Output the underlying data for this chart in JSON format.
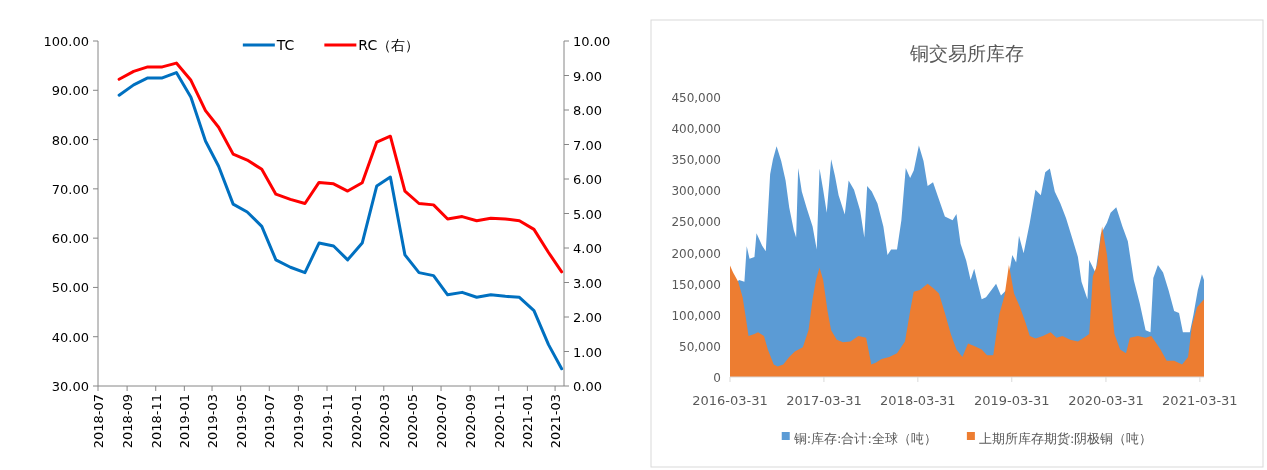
{
  "chart_data": [
    {
      "type": "line",
      "legend": "top",
      "xlim": [
        "2018-07-01",
        "2021-03-20"
      ],
      "xticks": [
        "2018-07",
        "2018-09",
        "2018-11",
        "2019-01",
        "2019-03",
        "2019-05",
        "2019-07",
        "2019-09",
        "2019-11",
        "2020-01",
        "2020-03",
        "2020-05",
        "2020-07",
        "2020-09",
        "2020-11",
        "2021-01",
        "2021-03"
      ],
      "ylim": [
        30,
        100
      ],
      "yticks": [
        {
          "value": 30,
          "label": "30.00"
        },
        {
          "value": 40,
          "label": "40.00"
        },
        {
          "value": 50,
          "label": "50.00"
        },
        {
          "value": 60,
          "label": "60.00"
        },
        {
          "value": 70,
          "label": "70.00"
        },
        {
          "value": 80,
          "label": "80.00"
        },
        {
          "value": 90,
          "label": "90.00"
        },
        {
          "value": 100,
          "label": "100.00"
        }
      ],
      "y2lim": [
        0,
        10
      ],
      "y2ticks": [
        {
          "value": 0,
          "label": "0.00"
        },
        {
          "value": 1,
          "label": "1.00"
        },
        {
          "value": 2,
          "label": "2.00"
        },
        {
          "value": 3,
          "label": "3.00"
        },
        {
          "value": 4,
          "label": "4.00"
        },
        {
          "value": 5,
          "label": "5.00"
        },
        {
          "value": 6,
          "label": "6.00"
        },
        {
          "value": 7,
          "label": "7.00"
        },
        {
          "value": 8,
          "label": "8.00"
        },
        {
          "value": 9,
          "label": "9.00"
        },
        {
          "value": 10,
          "label": "10.00"
        }
      ],
      "x": [
        "2018-08-15",
        "2018-09-15",
        "2018-10-15",
        "2018-11-15",
        "2018-12-15",
        "2019-01-15",
        "2019-02-15",
        "2019-03-15",
        "2019-04-15",
        "2019-05-15",
        "2019-06-15",
        "2019-07-15",
        "2019-08-15",
        "2019-09-15",
        "2019-10-15",
        "2019-11-15",
        "2019-12-15",
        "2020-01-15",
        "2020-02-15",
        "2020-03-15",
        "2020-04-15",
        "2020-05-15",
        "2020-06-15",
        "2020-07-15",
        "2020-08-15",
        "2020-09-15",
        "2020-10-15",
        "2020-11-15",
        "2020-12-15",
        "2021-01-15",
        "2021-02-15",
        "2021-03-15"
      ],
      "series": [
        {
          "name": "TC",
          "color": "#0070c0",
          "values": [
            89.0,
            91.1,
            92.5,
            92.5,
            93.6,
            88.6,
            79.7,
            74.6,
            66.9,
            65.3,
            62.4,
            55.6,
            54.1,
            53.0,
            59.0,
            58.4,
            55.6,
            59.0,
            70.6,
            72.4,
            56.6,
            53.0,
            52.4,
            48.5,
            49.0,
            48.0,
            48.5,
            48.2,
            48.0,
            45.3,
            38.4,
            33.5
          ]
        },
        {
          "name": "RC（右）",
          "color": "#ff0000",
          "axis": "y2",
          "values": [
            8.89,
            9.12,
            9.25,
            9.25,
            9.36,
            8.86,
            7.98,
            7.5,
            6.72,
            6.55,
            6.28,
            5.56,
            5.41,
            5.29,
            5.9,
            5.86,
            5.65,
            5.89,
            7.07,
            7.24,
            5.65,
            5.29,
            5.25,
            4.84,
            4.91,
            4.79,
            4.86,
            4.84,
            4.79,
            4.54,
            3.87,
            3.31
          ]
        }
      ]
    },
    {
      "type": "area",
      "title": "铜交易所库存",
      "legend": "bottom",
      "xlim": [
        "2016-03-31",
        "2021-04-16"
      ],
      "xticks": [
        "2016-03-31",
        "2017-03-31",
        "2018-03-31",
        "2019-03-31",
        "2020-03-31",
        "2021-03-31"
      ],
      "ylim": [
        0,
        450000
      ],
      "yticks": [
        0,
        {
          "value": 50000,
          "label": "50,000"
        },
        {
          "value": 100000,
          "label": "100,000"
        },
        {
          "value": 150000,
          "label": "150,000"
        },
        {
          "value": 200000,
          "label": "200,000"
        },
        {
          "value": 250000,
          "label": "250,000"
        },
        {
          "value": 300000,
          "label": "300,000"
        },
        {
          "value": 350000,
          "label": "350,000"
        },
        {
          "value": 400000,
          "label": "400,000"
        },
        {
          "value": 450000,
          "label": "450,000"
        }
      ],
      "series": [
        {
          "name": "铜:库存:合计:全球（吨）",
          "color": "#5b9bd5",
          "x": [
            "2016-03-31",
            "2016-05-05",
            "2016-05-26",
            "2016-06-04",
            "2016-06-15",
            "2016-07-04",
            "2016-07-12",
            "2016-08-03",
            "2016-08-17",
            "2016-09-03",
            "2016-09-14",
            "2016-09-28",
            "2016-10-16",
            "2016-11-02",
            "2016-11-16",
            "2016-12-04",
            "2016-12-13",
            "2016-12-21",
            "2017-01-04",
            "2017-01-22",
            "2017-02-15",
            "2017-03-03",
            "2017-03-14",
            "2017-03-28",
            "2017-04-11",
            "2017-04-28",
            "2017-05-13",
            "2017-05-27",
            "2017-06-20",
            "2017-07-05",
            "2017-07-26",
            "2017-08-19",
            "2017-09-04",
            "2017-09-15",
            "2017-10-03",
            "2017-10-25",
            "2017-11-17",
            "2017-12-03",
            "2017-12-17",
            "2018-01-09",
            "2018-01-26",
            "2018-02-12",
            "2018-03-01",
            "2018-03-15",
            "2018-04-04",
            "2018-04-22",
            "2018-05-08",
            "2018-05-29",
            "2018-06-18",
            "2018-07-14",
            "2018-08-13",
            "2018-08-28",
            "2018-09-13",
            "2018-10-05",
            "2018-10-22",
            "2018-11-05",
            "2018-11-19",
            "2018-12-04",
            "2018-12-21",
            "2019-01-11",
            "2019-01-29",
            "2019-02-17",
            "2019-03-10",
            "2019-04-02",
            "2019-04-17",
            "2019-04-28",
            "2019-05-16",
            "2019-06-09",
            "2019-07-01",
            "2019-07-22",
            "2019-08-08",
            "2019-08-26",
            "2019-09-14",
            "2019-10-06",
            "2019-10-28",
            "2019-11-20",
            "2019-12-13",
            "2019-12-27",
            "2020-01-19",
            "2020-01-26",
            "2020-02-19",
            "2020-03-11",
            "2020-04-04",
            "2020-04-18",
            "2020-05-10",
            "2020-06-03",
            "2020-06-24",
            "2020-07-17",
            "2020-08-09",
            "2020-09-01",
            "2020-09-20",
            "2020-10-01",
            "2020-10-19",
            "2020-11-08",
            "2020-11-29",
            "2020-12-21",
            "2021-01-09",
            "2021-01-24",
            "2021-02-20",
            "2021-03-06",
            "2021-03-23",
            "2021-04-08",
            "2021-04-16"
          ],
          "values": [
            140000,
            156000,
            153000,
            210000,
            190000,
            193000,
            231000,
            211000,
            202000,
            326000,
            350000,
            371000,
            347000,
            316000,
            273000,
            236000,
            224000,
            336000,
            298000,
            273000,
            242000,
            205000,
            335000,
            301000,
            264000,
            350000,
            323000,
            292000,
            261000,
            316000,
            301000,
            267000,
            224000,
            307000,
            298000,
            279000,
            242000,
            196000,
            205000,
            205000,
            252000,
            336000,
            320000,
            332000,
            372000,
            347000,
            307000,
            313000,
            289000,
            258000,
            252000,
            262000,
            214000,
            187000,
            156000,
            174000,
            150000,
            125000,
            128000,
            140000,
            150000,
            131000,
            140000,
            196000,
            184000,
            227000,
            199000,
            248000,
            301000,
            292000,
            329000,
            335000,
            298000,
            279000,
            255000,
            224000,
            193000,
            153000,
            125000,
            188000,
            168000,
            230000,
            248000,
            264000,
            273000,
            242000,
            218000,
            156000,
            119000,
            75000,
            72000,
            159000,
            180000,
            168000,
            140000,
            106000,
            103000,
            72000,
            72000,
            100000,
            140000,
            165000,
            156000
          ]
        },
        {
          "name": "上期所库存期货:阴极铜（吨）",
          "color": "#ed7d31",
          "x": [
            "2016-03-31",
            "2016-04-12",
            "2016-05-02",
            "2016-05-19",
            "2016-06-01",
            "2016-06-11",
            "2016-07-04",
            "2016-07-18",
            "2016-08-10",
            "2016-08-25",
            "2016-09-17",
            "2016-10-02",
            "2016-10-24",
            "2016-11-16",
            "2016-12-08",
            "2017-01-08",
            "2017-01-30",
            "2017-02-15",
            "2017-02-28",
            "2017-03-14",
            "2017-03-28",
            "2017-04-14",
            "2017-04-28",
            "2017-05-20",
            "2017-06-13",
            "2017-07-12",
            "2017-08-12",
            "2017-09-11",
            "2017-10-01",
            "2017-10-18",
            "2017-11-10",
            "2017-12-10",
            "2018-01-09",
            "2018-02-09",
            "2018-03-01",
            "2018-03-15",
            "2018-04-08",
            "2018-05-08",
            "2018-05-29",
            "2018-06-21",
            "2018-07-14",
            "2018-08-06",
            "2018-08-28",
            "2018-09-20",
            "2018-10-12",
            "2018-11-05",
            "2018-12-04",
            "2018-12-25",
            "2019-01-18",
            "2019-02-10",
            "2019-03-03",
            "2019-03-20",
            "2019-04-09",
            "2019-05-02",
            "2019-05-23",
            "2019-06-09",
            "2019-07-01",
            "2019-07-30",
            "2019-08-29",
            "2019-09-21",
            "2019-10-14",
            "2019-11-13",
            "2019-12-13",
            "2020-01-05",
            "2020-01-26",
            "2020-02-09",
            "2020-02-26",
            "2020-03-16",
            "2020-04-04",
            "2020-04-18",
            "2020-05-03",
            "2020-05-25",
            "2020-06-17",
            "2020-07-02",
            "2020-08-02",
            "2020-09-01",
            "2020-09-23",
            "2020-10-08",
            "2020-10-29",
            "2020-11-22",
            "2020-12-21",
            "2021-01-21",
            "2021-02-13",
            "2021-02-28",
            "2021-03-20",
            "2021-04-16"
          ],
          "values": [
            179000,
            168000,
            153000,
            128000,
            94000,
            66000,
            69000,
            72000,
            66000,
            44000,
            20000,
            17000,
            20000,
            32000,
            41000,
            48000,
            75000,
            125000,
            156000,
            176000,
            156000,
            106000,
            75000,
            60000,
            56000,
            57000,
            66000,
            63000,
            20000,
            23000,
            29000,
            32000,
            38000,
            57000,
            106000,
            137000,
            140000,
            150000,
            143000,
            134000,
            103000,
            69000,
            44000,
            32000,
            54000,
            50000,
            44000,
            35000,
            35000,
            100000,
            131000,
            180000,
            134000,
            112000,
            88000,
            66000,
            62000,
            66000,
            72000,
            63000,
            66000,
            60000,
            57000,
            63000,
            69000,
            162000,
            180000,
            242000,
            196000,
            131000,
            69000,
            44000,
            38000,
            63000,
            66000,
            63000,
            66000,
            57000,
            44000,
            26000,
            26000,
            20000,
            32000,
            82000,
            112000,
            125000
          ]
        }
      ]
    }
  ]
}
